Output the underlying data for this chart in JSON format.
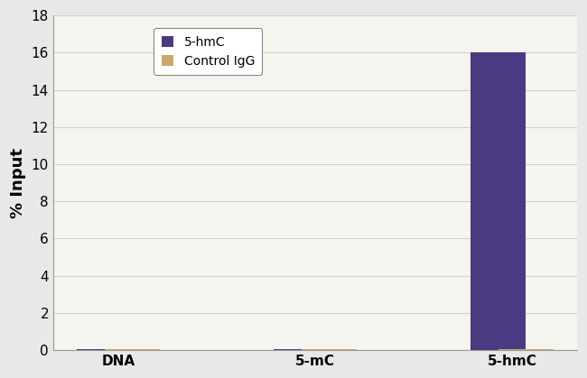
{
  "categories": [
    "DNA",
    "5-mC",
    "5-hmC"
  ],
  "hmc_values": [
    0.07,
    0.06,
    16.0
  ],
  "igg_values": [
    0.04,
    0.04,
    0.04
  ],
  "hmc_color": "#4B3A82",
  "igg_color": "#C8A96E",
  "ylabel": "% Input",
  "ylim": [
    0,
    18
  ],
  "yticks": [
    0,
    2,
    4,
    6,
    8,
    10,
    12,
    14,
    16,
    18
  ],
  "legend_labels": [
    "5-hmC",
    "Control IgG"
  ],
  "bar_width": 0.28,
  "background_color": "#e8e8e8",
  "plot_bg_color": "#f5f5f0",
  "gridcolor": "#d0d0d0",
  "tick_fontsize": 11,
  "ylabel_fontsize": 13,
  "xtick_fontsize": 11
}
